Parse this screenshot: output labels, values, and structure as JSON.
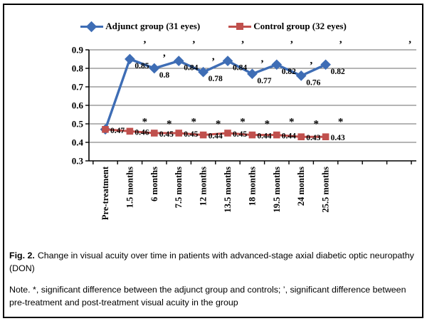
{
  "chart_data": {
    "type": "line",
    "title": "",
    "xlabel": "",
    "ylabel": "",
    "categories": [
      "Pre-treatment",
      "1.5 months",
      "6 months",
      "7.5 months",
      "12 months",
      "13.5 months",
      "18 months",
      "19.5 months",
      "24 months",
      "25.5 months"
    ],
    "series": [
      {
        "name": "Adjunct group (31 eyes)",
        "color": "#3E6DB5",
        "marker": "diamond",
        "values": [
          0.47,
          0.85,
          0.8,
          0.84,
          0.78,
          0.84,
          0.77,
          0.82,
          0.76,
          0.82
        ],
        "labels": [
          "",
          "0.85",
          "0.8",
          "0.84",
          "0.78",
          "0.84",
          "0.77",
          "0.82",
          "0.76",
          "0.82"
        ]
      },
      {
        "name": "Control group (32 eyes)",
        "color": "#C0504D",
        "marker": "square",
        "values": [
          0.47,
          0.46,
          0.45,
          0.45,
          0.44,
          0.45,
          0.44,
          0.44,
          0.43,
          0.43
        ],
        "labels": [
          "0.47",
          "0.46",
          "0.45",
          "0.45",
          "0.44",
          "0.45",
          "0.44",
          "0.44",
          "0.43",
          "0.43"
        ]
      }
    ],
    "ylim": [
      0.3,
      0.9
    ],
    "yticks": [
      "0.9",
      "0.8",
      "0.7",
      "0.6",
      "0.5",
      "0.4",
      "0.3"
    ],
    "grid": true,
    "legend_position": "top",
    "significance": {
      "asterisk_symbol": "*",
      "asterisk_indices": [
        1,
        2,
        3,
        4,
        5,
        6,
        7,
        8,
        9
      ],
      "apostrophe_symbol": "’",
      "apostrophe_indices": [
        1,
        2,
        3,
        4,
        5,
        6,
        7,
        8,
        9
      ],
      "extra_apostrophe_top_right": true
    }
  },
  "caption": {
    "prefix": "Fig. 2.",
    "text": "Change in visual acuity over time in patients with advanced-stage axial diabetic optic neuropathy\n(DON)"
  },
  "note": {
    "text": "Note. *, significant difference between the adjunct group and controls; ’, significant difference between\npre-treatment and post-treatment visual acuity in the group"
  }
}
